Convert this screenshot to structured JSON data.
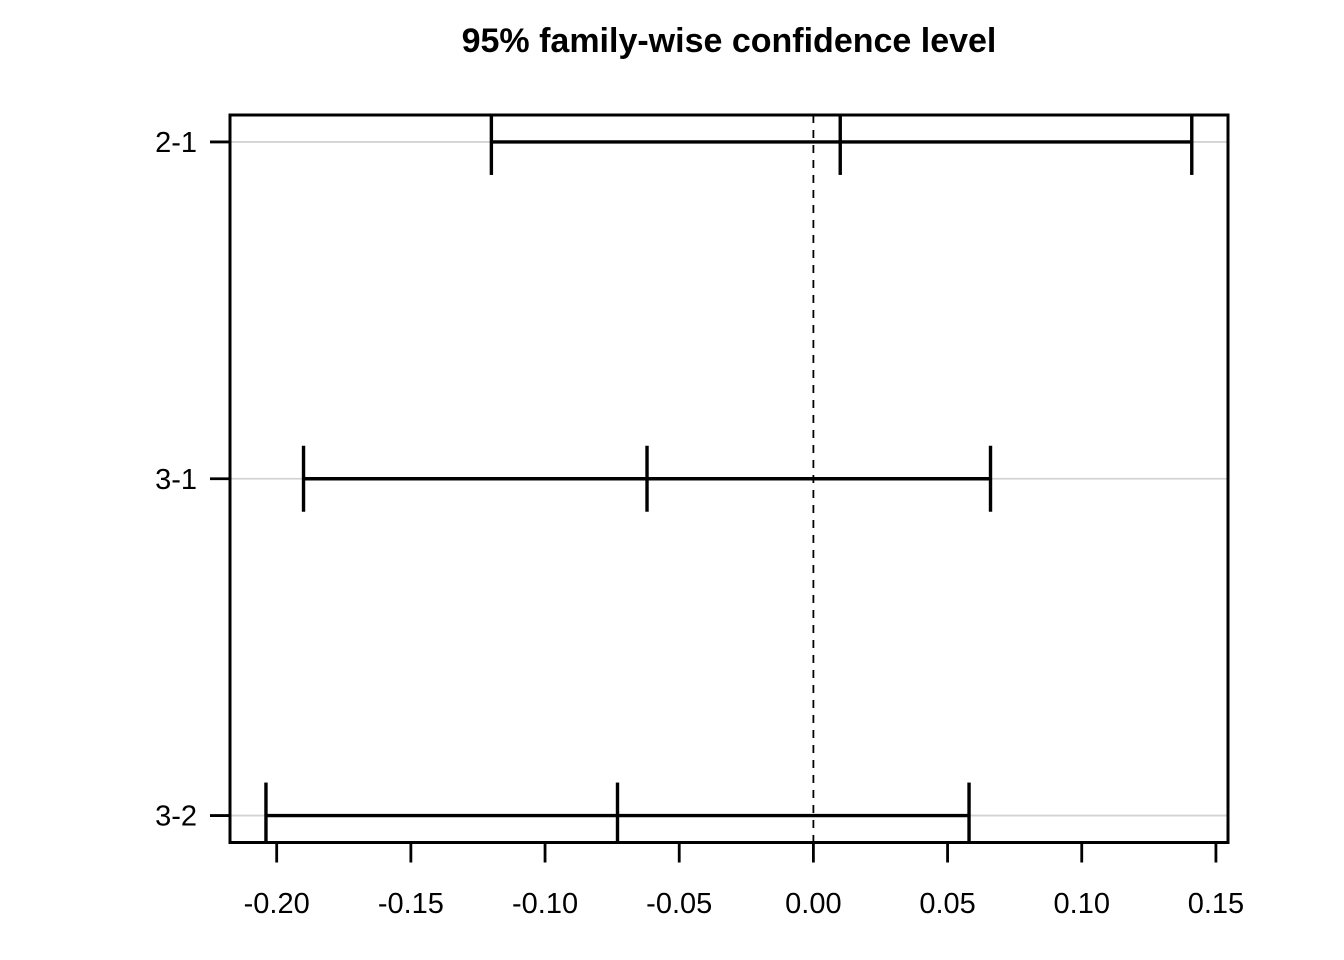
{
  "page": {
    "background": "#ffffff"
  },
  "chart_data": {
    "type": "interval",
    "title": "95% family-wise confidence level",
    "comparisons": [
      {
        "label": "2-1",
        "diff": 0.01,
        "lwr": -0.12,
        "upr": 0.141
      },
      {
        "label": "3-1",
        "diff": -0.062,
        "lwr": -0.19,
        "upr": 0.066
      },
      {
        "label": "3-2",
        "diff": -0.073,
        "lwr": -0.204,
        "upr": 0.058
      }
    ],
    "x_ticks": [
      -0.2,
      -0.15,
      -0.1,
      -0.05,
      0.0,
      0.05,
      0.1,
      0.15
    ],
    "x_tick_labels": [
      "-0.20",
      "-0.15",
      "-0.10",
      "-0.05",
      "0.00",
      "0.05",
      "0.10",
      "0.15"
    ],
    "xlim": [
      -0.2174,
      0.1545
    ],
    "ylim": [
      0.92,
      3.08
    ],
    "y_values": [
      3,
      2,
      1
    ],
    "reference_line_x": 0,
    "reference_line_style": "dashed",
    "grid": "horizontal-lightgray",
    "legend": "none",
    "colors": {
      "line": "#000000",
      "grid": "#d3d3d3",
      "reference": "#000000",
      "text": "#000000"
    }
  }
}
